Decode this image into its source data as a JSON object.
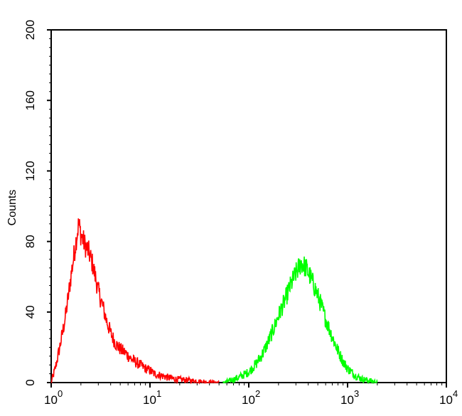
{
  "chart_data": {
    "type": "line",
    "title": "",
    "xlabel": "",
    "ylabel": "Counts",
    "xscale": "log",
    "xlim": [
      1,
      10000
    ],
    "ylim": [
      0,
      200
    ],
    "grid": false,
    "legend": "none",
    "yticks": [
      0,
      40,
      80,
      120,
      160,
      200
    ],
    "xticks": [
      {
        "base": "10",
        "exp": "0",
        "value": 1
      },
      {
        "base": "10",
        "exp": "1",
        "value": 10
      },
      {
        "base": "10",
        "exp": "2",
        "value": 100
      },
      {
        "base": "10",
        "exp": "3",
        "value": 1000
      },
      {
        "base": "10",
        "exp": "4",
        "value": 10000
      }
    ],
    "series": [
      {
        "color": "#ff0000",
        "x": [
          1.0,
          1.1,
          1.2,
          1.3,
          1.4,
          1.5,
          1.6,
          1.7,
          1.8,
          1.9,
          2.0,
          2.2,
          2.4,
          2.6,
          2.8,
          3.0,
          3.3,
          3.6,
          4.0,
          4.5,
          5.0,
          5.6,
          6.3,
          7.0,
          8.0,
          9.0,
          10,
          11,
          13,
          15,
          18,
          22,
          27,
          33,
          40,
          50
        ],
        "y": [
          0,
          8,
          18,
          28,
          38,
          50,
          62,
          72,
          82,
          90,
          84,
          78,
          74,
          68,
          60,
          52,
          44,
          36,
          28,
          22,
          19,
          17,
          14,
          12,
          10,
          8,
          7,
          5,
          4,
          3,
          2,
          1.5,
          1,
          0.5,
          0.2,
          0
        ]
      },
      {
        "color": "#00ff00",
        "x": [
          55,
          65,
          80,
          100,
          120,
          140,
          160,
          180,
          200,
          230,
          260,
          300,
          340,
          380,
          420,
          480,
          540,
          600,
          700,
          800,
          900,
          1000,
          1200,
          1400,
          1700,
          2000
        ],
        "y": [
          0,
          1,
          3,
          6,
          11,
          17,
          24,
          31,
          38,
          46,
          54,
          62,
          68,
          65,
          60,
          52,
          44,
          36,
          26,
          18,
          12,
          8,
          4,
          2,
          1,
          0
        ]
      }
    ]
  }
}
